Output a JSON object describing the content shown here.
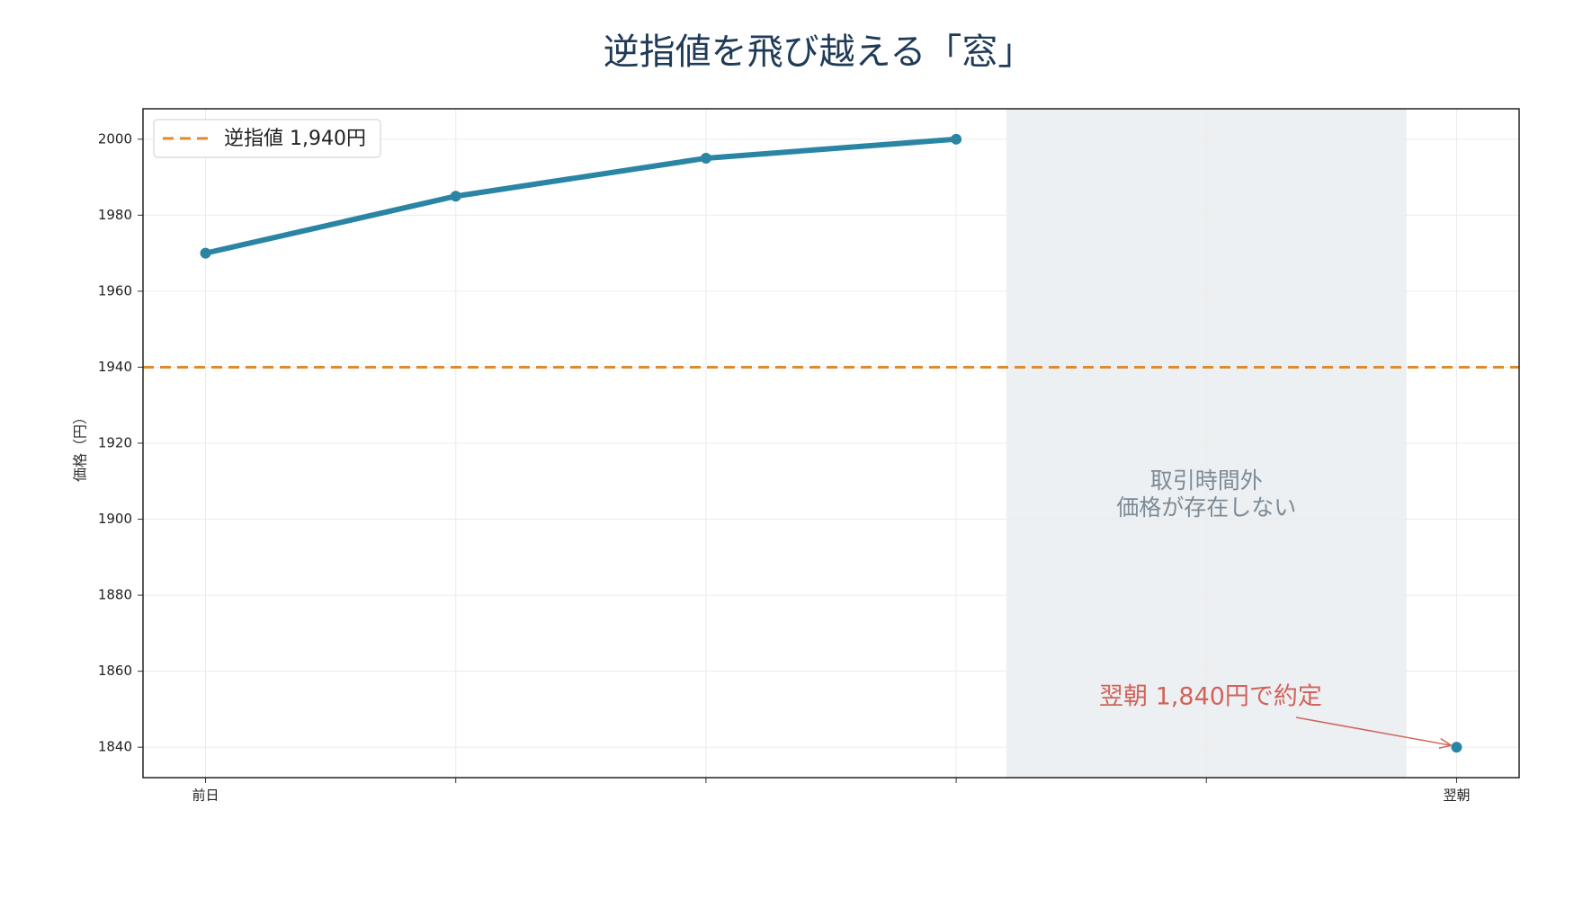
{
  "chart_data": {
    "type": "line",
    "title": "逆指値を飛び越える「窓」",
    "ylabel": "価格（円）",
    "categories": [
      "前日",
      null,
      null,
      null,
      null,
      "翌朝"
    ],
    "series": [
      {
        "name": "価格",
        "color": "#2a84a4",
        "values": [
          1970,
          1985,
          1995,
          2000,
          null,
          1840
        ]
      }
    ],
    "hline": {
      "value": 1940,
      "name": "逆指値 1,940円",
      "color": "#e08a2e"
    },
    "shaded_region": {
      "x": [
        3.2,
        4.8
      ],
      "color": "#edf0f3",
      "label": [
        "取引時間外",
        "価格が存在しない"
      ]
    },
    "annotation": {
      "text": "翌朝 1,840円で約定",
      "x": 5,
      "y": 1840,
      "color": "#d0635a"
    },
    "xlim": [
      -0.25,
      5.25
    ],
    "ylim": [
      1832,
      2008
    ],
    "yticks": [
      1840,
      1860,
      1880,
      1900,
      1920,
      1940,
      1960,
      1980,
      2000
    ],
    "grid": true,
    "legend": "upper left"
  }
}
